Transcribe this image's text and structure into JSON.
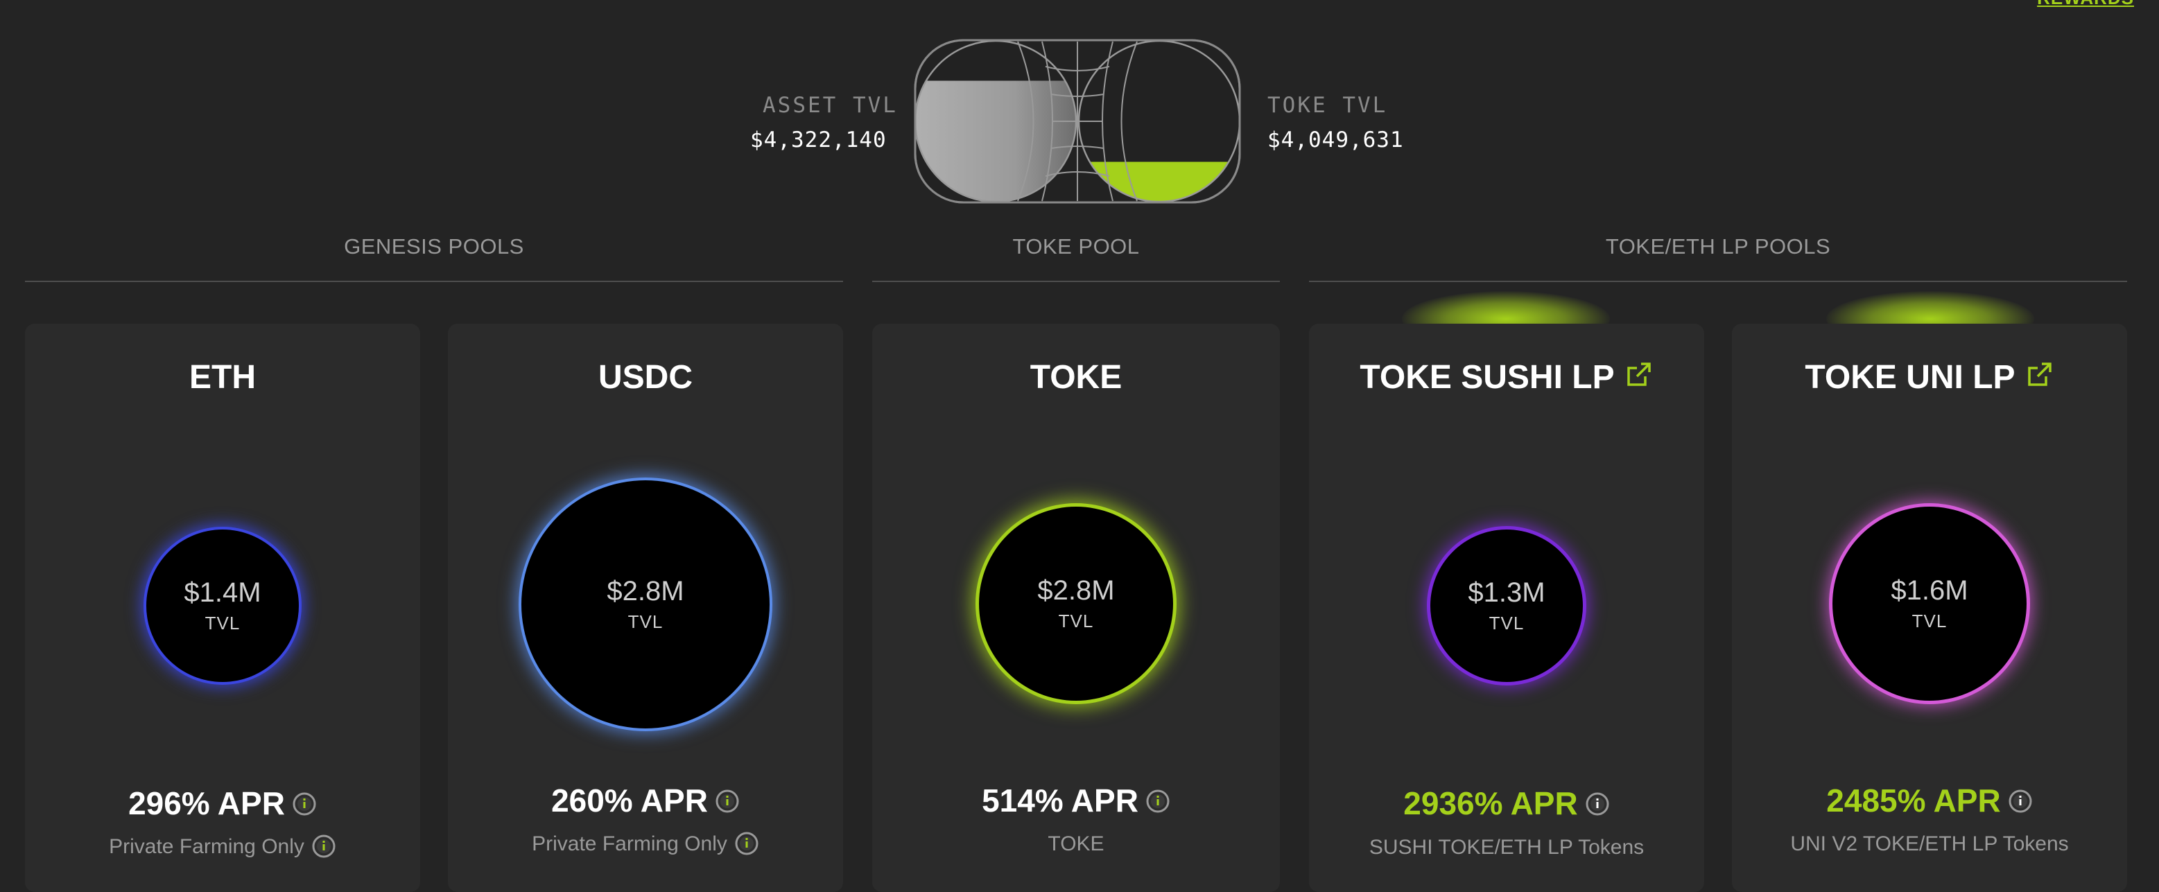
{
  "header": {
    "rewards_link": "REWARDS",
    "asset_tvl_label": "ASSET TVL",
    "asset_tvl_value": "$4,322,140",
    "toke_tvl_label": "TOKE TVL",
    "toke_tvl_value": "$4,049,631",
    "asset_fill_fraction": 0.75,
    "toke_fill_fraction": 0.25
  },
  "sections": {
    "genesis": "GENESIS POOLS",
    "toke": "TOKE POOL",
    "lp": "TOKE/ETH LP POOLS"
  },
  "pools": [
    {
      "name": "ETH",
      "tvl": "$1.4M",
      "tvl_label": "TVL",
      "apr": "296% APR",
      "note": "Private Farming Only",
      "glow_color": "#3b46e0"
    },
    {
      "name": "USDC",
      "tvl": "$2.8M",
      "tvl_label": "TVL",
      "apr": "260% APR",
      "note": "Private Farming Only",
      "glow_color": "#5a8be8"
    },
    {
      "name": "TOKE",
      "tvl": "$2.8M",
      "tvl_label": "TVL",
      "apr": "514% APR",
      "note": "TOKE",
      "glow_color": "#a4d11b"
    },
    {
      "name": "TOKE SUSHI LP",
      "tvl": "$1.3M",
      "tvl_label": "TVL",
      "apr": "2936% APR",
      "note": "SUSHI TOKE/ETH LP Tokens",
      "glow_color": "#7a2ad8"
    },
    {
      "name": "TOKE UNI LP",
      "tvl": "$1.6M",
      "tvl_label": "TVL",
      "apr": "2485% APR",
      "note": "UNI V2 TOKE/ETH LP Tokens",
      "glow_color": "#d45ad8"
    }
  ],
  "icons": {
    "info": "info-icon",
    "external_link": "external-link-icon"
  },
  "colors": {
    "accent": "#a4d11b",
    "background": "#242424",
    "card": "#2b2b2b"
  }
}
